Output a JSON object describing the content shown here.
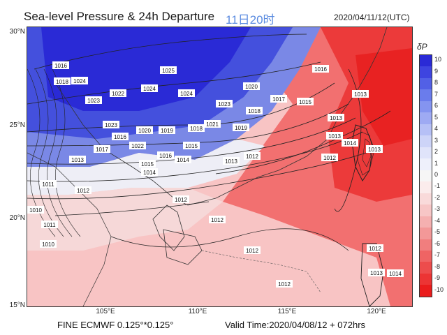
{
  "header": {
    "title": "Sea-level Pressure & 24h Departure",
    "time_cn": "11日20时",
    "datetime": "2020/04/11/12(UTC)"
  },
  "footer": {
    "model": "FINE ECMWF 0.125°*0.125°",
    "valid": "Valid Time:2020/04/08/12 + 072hrs"
  },
  "map": {
    "lat_labels": [
      "30°N",
      "25°N",
      "20°N",
      "15°N"
    ],
    "lon_labels": [
      "105°E",
      "110°E",
      "115°E",
      "120°E"
    ],
    "isobar_labels": [
      "1016",
      "1018",
      "1024",
      "1025",
      "1024",
      "1022",
      "1023",
      "1024",
      "1023",
      "1022",
      "1023",
      "1020",
      "1021",
      "1020",
      "1019",
      "1018",
      "1016",
      "1017",
      "1015",
      "1014",
      "1016",
      "1015",
      "1013",
      "1014",
      "1012",
      "1013",
      "1011",
      "1012",
      "1010",
      "1011",
      "1010",
      "1012",
      "1012",
      "1012",
      "1012",
      "1013",
      "1014",
      "1017",
      "1015",
      "1016",
      "1018",
      "1019",
      "1013",
      "1013",
      "1012",
      "1013",
      "1012",
      "1013",
      "1014"
    ]
  },
  "colorbar": {
    "title": "δP",
    "labels": [
      "10",
      "9",
      "8",
      "7",
      "6",
      "5",
      "4",
      "3",
      "2",
      "1",
      "0",
      "-1",
      "-2",
      "-3",
      "-4",
      "-5",
      "-6",
      "-7",
      "-8",
      "-9",
      "-10"
    ],
    "colors": [
      "#2a2ad6",
      "#3e44e0",
      "#5260e6",
      "#6a7cec",
      "#8494f0",
      "#9eaaf3",
      "#b6c0f6",
      "#cdd4f8",
      "#e0e4fa",
      "#eef0fb",
      "#f6f6f6",
      "#fbecec",
      "#f9dada",
      "#f7c6c6",
      "#f5b0b0",
      "#f39898",
      "#f17e7e",
      "#ef6464",
      "#ed4c4c",
      "#ec3434",
      "#ea1c1c"
    ]
  }
}
